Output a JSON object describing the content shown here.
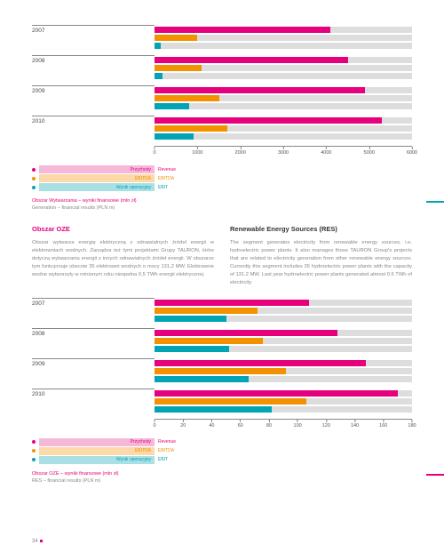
{
  "colors": {
    "revenue": "#e6007e",
    "ebitda": "#f39200",
    "ebit": "#00a5b5",
    "bg_bar": "#dddddd",
    "axis": "#888888",
    "text_muted": "#888888",
    "pink_light": "#f6b8d9",
    "orange_light": "#fbd9a8",
    "teal_light": "#a8e0e6"
  },
  "chart1": {
    "years": [
      "2007",
      "2008",
      "2009",
      "2010"
    ],
    "xmax": 6000,
    "ticks": [
      0,
      1000,
      2000,
      3000,
      4000,
      5000,
      6000
    ],
    "series": {
      "revenue": [
        4100,
        4500,
        4900,
        5300
      ],
      "ebitda": [
        1000,
        1100,
        1500,
        1700
      ],
      "ebit": [
        150,
        180,
        800,
        900
      ]
    },
    "caption_pl": "Obszar Wytwarzania – wyniki finansowe (mln zł)",
    "caption_en": "Generation – financial results (PLN m)"
  },
  "legend": {
    "pl": [
      "Przychody",
      "EBITDA",
      "Wynik operacyjny"
    ],
    "en": [
      "Revenue",
      "EBITDA",
      "EBIT"
    ]
  },
  "section": {
    "pl_title": "Obszar OZE",
    "pl_body": "Obszar wytwarza energię elektryczną z odnawialnych źródeł energii w elektrowniach wodnych. Zarządza też tymi projektami Grupy TAURON, które dotyczą wytwarzania energii z innych odnawialnych źródeł energii. W obszarze tym funkcjonuje obecnie 35 elektrowni wodnych o mocy 131,2 MW. Elektrownie wodne wytworzyły w minionym roku niespełna 0,5 TWh energii elektrycznej.",
    "en_title": "Renewable Energy Sources (RES)",
    "en_body": "The segment generates electricity from renewable energy sources, i.e. hydroelectric power plants. It also manages those TAURON Group's projects that are related to electricity generation from other renewable energy sources. Currently this segment includes 35 hydroelectric power plants with the capacity of 131.2 MW. Last year hydroelectric power plants generated almost 0.5 TWh of electricity."
  },
  "chart2": {
    "years": [
      "2007",
      "2008",
      "2009",
      "2010"
    ],
    "xmax": 180,
    "ticks": [
      0,
      20,
      40,
      60,
      80,
      100,
      120,
      140,
      160,
      180
    ],
    "series": {
      "revenue": [
        108,
        128,
        148,
        170
      ],
      "ebitda": [
        72,
        76,
        92,
        106
      ],
      "ebit": [
        50,
        52,
        66,
        82
      ]
    },
    "caption_pl": "Obszar OZE – wyniki finansowe (mln zł)",
    "caption_en": "RES – financial results (PLN m)"
  },
  "page_number": "34"
}
